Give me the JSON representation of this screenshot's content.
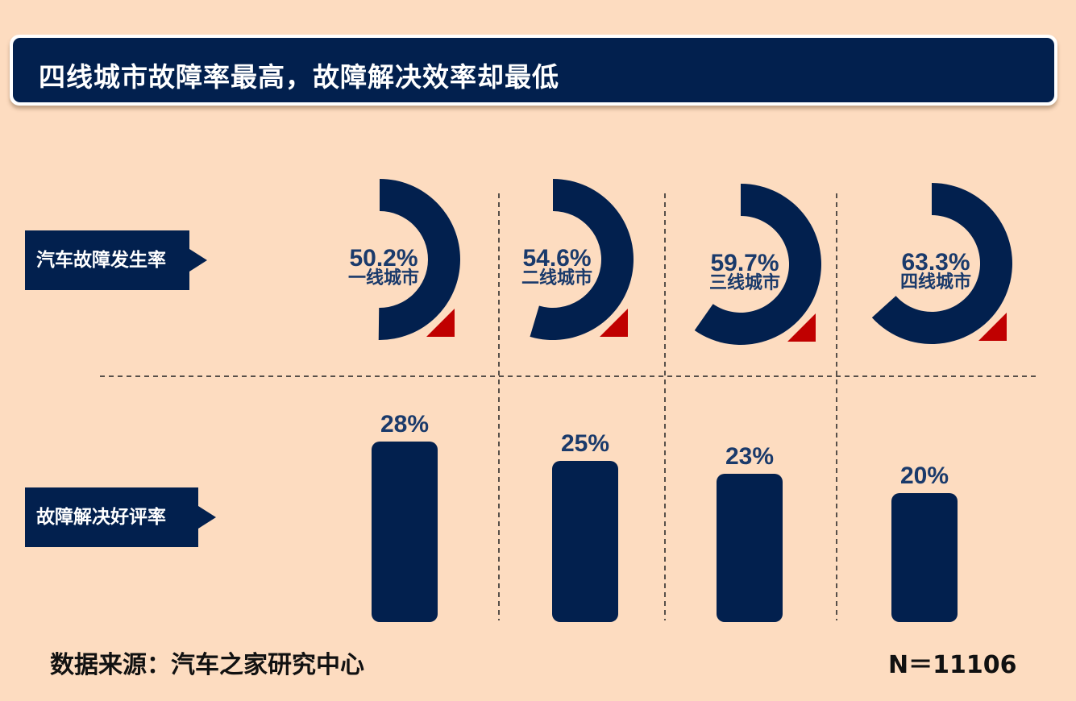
{
  "title": "四线城市故障率最高，故障解决效率却最低",
  "row_labels": {
    "incidence": "汽车故障发生率",
    "satisfaction": "故障解决好评率"
  },
  "colors": {
    "background": "#fddcc0",
    "primary": "#02204e",
    "accent": "#c00000",
    "label_text": "#1a3a6b"
  },
  "chart_data": [
    {
      "type": "pie",
      "name": "汽车故障发生率",
      "categories": [
        "一线城市",
        "二线城市",
        "三线城市",
        "四线城市"
      ],
      "values": [
        50.2,
        54.6,
        59.7,
        63.3
      ],
      "value_labels": [
        "50.2%",
        "54.6%",
        "59.7%",
        "63.3%"
      ]
    },
    {
      "type": "bar",
      "name": "故障解决好评率",
      "categories": [
        "一线城市",
        "二线城市",
        "三线城市",
        "四线城市"
      ],
      "values": [
        28,
        25,
        23,
        20
      ],
      "value_labels": [
        "28%",
        "25%",
        "23%",
        "20%"
      ]
    }
  ],
  "footer": {
    "source": "数据来源：汽车之家研究中心",
    "sample": "N＝11106"
  }
}
